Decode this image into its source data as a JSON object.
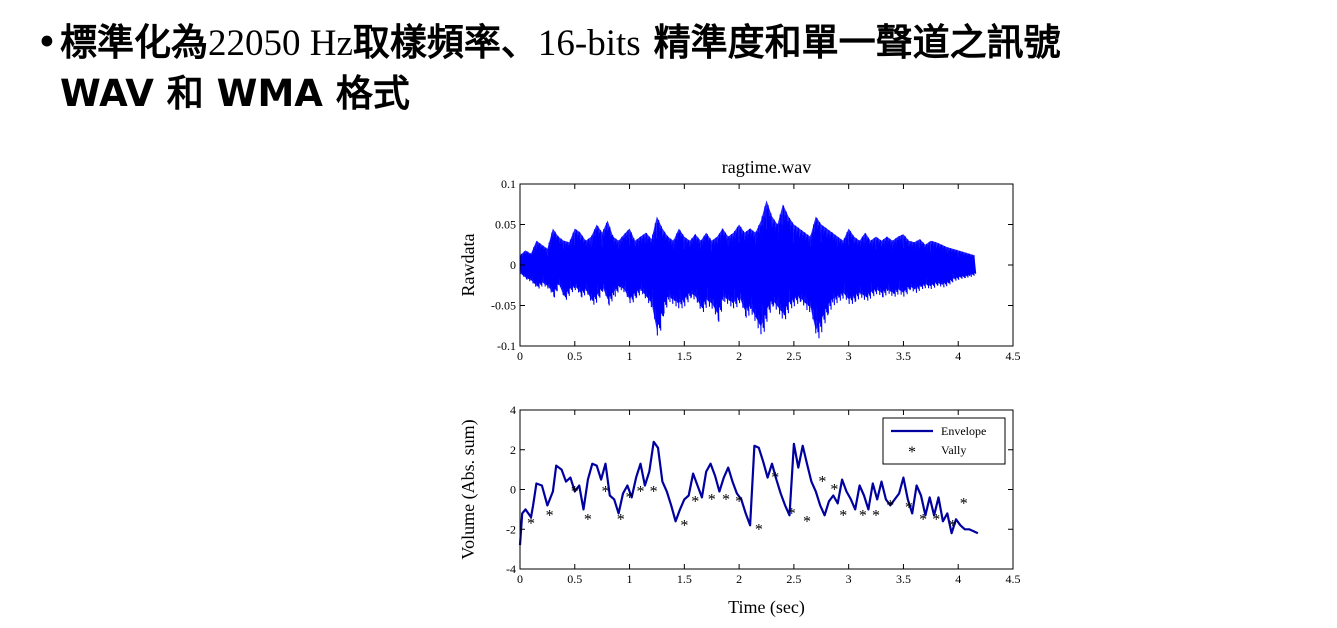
{
  "slide": {
    "bullet": "•",
    "title_line1_a": "標準化為",
    "title_line1_b": "22050 Hz",
    "title_line1_c": "取樣頻率、",
    "title_line1_d": "16-bits",
    "title_line1_e": " 精準度和單一聲道之訊號",
    "title_line2": "WAV 和 WMA 格式"
  },
  "colors": {
    "signal": "#0000ff",
    "envelope": "#0000a0",
    "axis": "#000000"
  },
  "chart_data": [
    {
      "type": "line",
      "title": "ragtime.wav",
      "xlabel": "",
      "ylabel": "Rawdata",
      "xlim": [
        0,
        4.5
      ],
      "ylim": [
        -0.1,
        0.1
      ],
      "xticks": [
        "0",
        "0.5",
        "1",
        "1.5",
        "2",
        "2.5",
        "3",
        "3.5",
        "4",
        "4.5"
      ],
      "yticks": [
        "0.1",
        "0.05",
        "0",
        "-0.05",
        "-0.1"
      ],
      "grid": false,
      "series": [
        {
          "x": [
            0,
            0.05,
            0.1,
            0.15,
            0.2,
            0.25,
            0.3,
            0.35,
            0.4,
            0.45,
            0.5,
            0.55,
            0.6,
            0.65,
            0.7,
            0.75,
            0.8,
            0.85,
            0.9,
            0.95,
            1.0,
            1.05,
            1.1,
            1.15,
            1.2,
            1.25,
            1.3,
            1.35,
            1.4,
            1.45,
            1.5,
            1.55,
            1.6,
            1.65,
            1.7,
            1.75,
            1.8,
            1.85,
            1.9,
            1.95,
            2.0,
            2.05,
            2.1,
            2.15,
            2.2,
            2.25,
            2.3,
            2.35,
            2.4,
            2.45,
            2.5,
            2.55,
            2.6,
            2.65,
            2.7,
            2.75,
            2.8,
            2.85,
            2.9,
            2.95,
            3.0,
            3.05,
            3.1,
            3.15,
            3.2,
            3.25,
            3.3,
            3.35,
            3.4,
            3.45,
            3.5,
            3.55,
            3.6,
            3.65,
            3.7,
            3.75,
            3.8,
            3.85,
            3.9,
            3.95,
            4.0,
            4.05,
            4.1,
            4.15
          ],
          "upper": [
            0.012,
            0.018,
            0.014,
            0.03,
            0.025,
            0.02,
            0.045,
            0.035,
            0.03,
            0.028,
            0.045,
            0.04,
            0.03,
            0.035,
            0.05,
            0.04,
            0.055,
            0.035,
            0.03,
            0.038,
            0.045,
            0.03,
            0.035,
            0.04,
            0.032,
            0.06,
            0.045,
            0.035,
            0.03,
            0.045,
            0.035,
            0.03,
            0.038,
            0.03,
            0.04,
            0.03,
            0.035,
            0.045,
            0.035,
            0.04,
            0.05,
            0.04,
            0.045,
            0.04,
            0.055,
            0.08,
            0.06,
            0.05,
            0.075,
            0.06,
            0.05,
            0.045,
            0.04,
            0.035,
            0.06,
            0.05,
            0.045,
            0.04,
            0.035,
            0.03,
            0.045,
            0.035,
            0.03,
            0.04,
            0.03,
            0.035,
            0.03,
            0.035,
            0.03,
            0.035,
            0.038,
            0.03,
            0.028,
            0.032,
            0.025,
            0.03,
            0.028,
            0.025,
            0.022,
            0.02,
            0.018,
            0.016,
            0.014,
            0.012
          ],
          "lower": [
            -0.012,
            -0.018,
            -0.022,
            -0.03,
            -0.025,
            -0.03,
            -0.04,
            -0.025,
            -0.045,
            -0.035,
            -0.03,
            -0.04,
            -0.035,
            -0.05,
            -0.045,
            -0.03,
            -0.05,
            -0.04,
            -0.03,
            -0.035,
            -0.05,
            -0.04,
            -0.035,
            -0.045,
            -0.055,
            -0.095,
            -0.06,
            -0.045,
            -0.05,
            -0.055,
            -0.05,
            -0.04,
            -0.045,
            -0.06,
            -0.05,
            -0.055,
            -0.07,
            -0.045,
            -0.05,
            -0.055,
            -0.045,
            -0.065,
            -0.06,
            -0.075,
            -0.09,
            -0.065,
            -0.05,
            -0.06,
            -0.07,
            -0.055,
            -0.05,
            -0.045,
            -0.055,
            -0.06,
            -0.095,
            -0.08,
            -0.06,
            -0.05,
            -0.045,
            -0.04,
            -0.05,
            -0.045,
            -0.04,
            -0.045,
            -0.04,
            -0.035,
            -0.04,
            -0.035,
            -0.04,
            -0.035,
            -0.04,
            -0.03,
            -0.035,
            -0.03,
            -0.028,
            -0.03,
            -0.025,
            -0.028,
            -0.025,
            -0.02,
            -0.018,
            -0.016,
            -0.015,
            -0.012
          ]
        }
      ]
    },
    {
      "type": "line",
      "title": "",
      "xlabel": "Time (sec)",
      "ylabel": "Volume (Abs. sum)",
      "xlim": [
        0,
        4.5
      ],
      "ylim": [
        -4,
        4
      ],
      "xticks": [
        "0",
        "0.5",
        "1",
        "1.5",
        "2",
        "2.5",
        "3",
        "3.5",
        "4",
        "4.5"
      ],
      "yticks": [
        "4",
        "2",
        "0",
        "-2",
        "-4"
      ],
      "grid": false,
      "legend": "top-right",
      "series": [
        {
          "name": "Envelope",
          "x": [
            0.0,
            0.02,
            0.05,
            0.1,
            0.12,
            0.15,
            0.2,
            0.25,
            0.3,
            0.33,
            0.38,
            0.42,
            0.46,
            0.5,
            0.54,
            0.58,
            0.62,
            0.66,
            0.7,
            0.74,
            0.78,
            0.82,
            0.86,
            0.9,
            0.94,
            0.98,
            1.02,
            1.06,
            1.1,
            1.14,
            1.18,
            1.22,
            1.26,
            1.3,
            1.34,
            1.38,
            1.42,
            1.46,
            1.5,
            1.54,
            1.58,
            1.62,
            1.66,
            1.7,
            1.74,
            1.78,
            1.82,
            1.86,
            1.9,
            1.94,
            1.98,
            2.02,
            2.06,
            2.1,
            2.14,
            2.18,
            2.22,
            2.26,
            2.3,
            2.34,
            2.38,
            2.42,
            2.46,
            2.5,
            2.54,
            2.58,
            2.62,
            2.66,
            2.7,
            2.74,
            2.78,
            2.82,
            2.86,
            2.9,
            2.94,
            2.98,
            3.02,
            3.06,
            3.1,
            3.14,
            3.18,
            3.22,
            3.26,
            3.3,
            3.34,
            3.38,
            3.42,
            3.46,
            3.5,
            3.54,
            3.58,
            3.62,
            3.66,
            3.7,
            3.74,
            3.78,
            3.82,
            3.86,
            3.9,
            3.94,
            3.98,
            4.02,
            4.06,
            4.1,
            4.14,
            4.18
          ],
          "values": [
            -2.8,
            -1.2,
            -1.0,
            -1.4,
            -0.8,
            0.3,
            0.2,
            -0.8,
            -0.1,
            1.2,
            1.0,
            0.4,
            0.6,
            -0.1,
            0.2,
            -1.0,
            0.5,
            1.3,
            1.2,
            0.5,
            1.3,
            -0.3,
            -0.5,
            -1.2,
            -0.2,
            0.2,
            -0.4,
            0.6,
            1.3,
            0.2,
            0.9,
            2.4,
            2.1,
            0.4,
            -0.1,
            -0.8,
            -1.6,
            -1.0,
            -0.5,
            -0.3,
            0.8,
            0.2,
            -0.4,
            0.9,
            1.3,
            0.7,
            -0.1,
            0.6,
            1.1,
            0.4,
            -0.2,
            -0.5,
            -1.2,
            -1.8,
            2.2,
            2.1,
            1.4,
            0.6,
            1.3,
            0.5,
            -0.2,
            -0.8,
            -1.3,
            2.3,
            1.1,
            2.2,
            1.3,
            0.4,
            -0.1,
            -0.8,
            -1.3,
            -0.6,
            -0.3,
            -0.7,
            0.5,
            -0.1,
            -0.5,
            -1.0,
            0.2,
            -0.3,
            -1.0,
            0.3,
            -0.5,
            0.4,
            -0.5,
            -0.8,
            -0.5,
            -0.2,
            0.6,
            -0.5,
            -1.2,
            0.2,
            -0.3,
            -1.3,
            -0.4,
            -1.3,
            -0.4,
            -1.6,
            -1.2,
            -2.2,
            -1.5,
            -1.8,
            -2.0,
            -2.0,
            -2.1,
            -2.2
          ]
        },
        {
          "name": "Vally",
          "x": [
            0.1,
            0.27,
            0.5,
            0.62,
            0.78,
            0.92,
            1.0,
            1.1,
            1.22,
            1.5,
            1.6,
            1.75,
            1.88,
            2.0,
            2.18,
            2.33,
            2.48,
            2.62,
            2.76,
            2.87,
            2.95,
            3.13,
            3.25,
            3.38,
            3.55,
            3.68,
            3.8,
            3.95,
            4.05
          ],
          "values": [
            -1.5,
            -1.1,
            0.1,
            -1.3,
            0.1,
            -1.3,
            -0.2,
            0.1,
            0.1,
            -1.6,
            -0.4,
            -0.3,
            -0.3,
            -0.4,
            -1.8,
            0.8,
            -1.0,
            -1.4,
            0.6,
            0.2,
            -1.1,
            -1.1,
            -1.1,
            -0.6,
            -0.7,
            -1.3,
            -1.3,
            -1.6,
            -0.5
          ]
        }
      ]
    }
  ]
}
